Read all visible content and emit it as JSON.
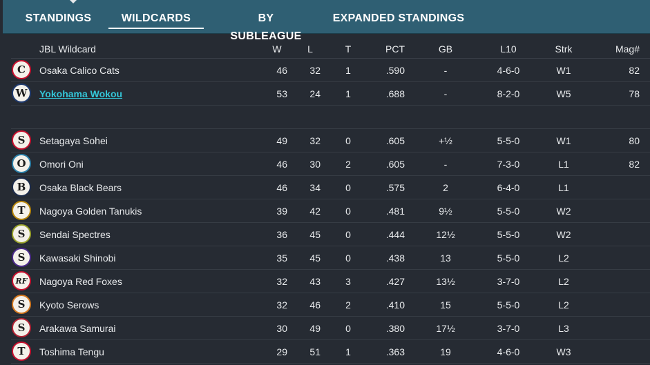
{
  "tabs": [
    {
      "label": "STANDINGS",
      "active": false
    },
    {
      "label": "WILDCARDS",
      "active": true
    },
    {
      "label": "BY SUBLEAGUE",
      "active": false
    },
    {
      "label": "EXPANDED STANDINGS",
      "active": false
    }
  ],
  "table": {
    "headers": {
      "team": "JBL  Wildcard",
      "w": "W",
      "l": "L",
      "t": "T",
      "pct": "PCT",
      "gb": "GB",
      "l10": "L10",
      "strk": "Strk",
      "mag": "Mag#"
    },
    "leaders": [
      {
        "team": "Osaka Calico Cats",
        "logo": "C",
        "ring": "#c8102e",
        "w": "46",
        "l": "32",
        "t": "1",
        "pct": ".590",
        "gb": "-",
        "l10": "4-6-0",
        "strk": "W1",
        "mag": "82"
      },
      {
        "team": "Yokohama Wokou",
        "logo": "W",
        "ring": "#1f3a6e",
        "w": "53",
        "l": "24",
        "t": "1",
        "pct": ".688",
        "gb": "-",
        "l10": "8-2-0",
        "strk": "W5",
        "mag": "78",
        "highlight": true
      }
    ],
    "rows": [
      {
        "team": "Setagaya Sohei",
        "logo": "S",
        "ring": "#c8102e",
        "w": "49",
        "l": "32",
        "t": "0",
        "pct": ".605",
        "gb": "+½",
        "l10": "5-5-0",
        "strk": "W1",
        "mag": "80"
      },
      {
        "team": "Omori Oni",
        "logo": "O",
        "ring": "#2a7fa8",
        "w": "46",
        "l": "30",
        "t": "2",
        "pct": ".605",
        "gb": "-",
        "l10": "7-3-0",
        "strk": "L1",
        "mag": "82"
      },
      {
        "team": "Osaka Black Bears",
        "logo": "B",
        "ring": "#1c2b4a",
        "w": "46",
        "l": "34",
        "t": "0",
        "pct": ".575",
        "gb": "2",
        "l10": "6-4-0",
        "strk": "L1",
        "mag": ""
      },
      {
        "team": "Nagoya Golden Tanukis",
        "logo": "T",
        "ring": "#b8860b",
        "w": "39",
        "l": "42",
        "t": "0",
        "pct": ".481",
        "gb": "9½",
        "l10": "5-5-0",
        "strk": "W2",
        "mag": ""
      },
      {
        "team": "Sendai Spectres",
        "logo": "S",
        "ring": "#9aa32a",
        "w": "36",
        "l": "45",
        "t": "0",
        "pct": ".444",
        "gb": "12½",
        "l10": "5-5-0",
        "strk": "W2",
        "mag": ""
      },
      {
        "team": "Kawasaki Shinobi",
        "logo": "S",
        "ring": "#4b2a8a",
        "w": "35",
        "l": "45",
        "t": "0",
        "pct": ".438",
        "gb": "13",
        "l10": "5-5-0",
        "strk": "L2",
        "mag": ""
      },
      {
        "team": "Nagoya Red Foxes",
        "logo": "RF",
        "ring": "#c8102e",
        "w": "32",
        "l": "43",
        "t": "3",
        "pct": ".427",
        "gb": "13½",
        "l10": "3-7-0",
        "strk": "L2",
        "mag": ""
      },
      {
        "team": "Kyoto Serows",
        "logo": "S",
        "ring": "#d4781e",
        "w": "32",
        "l": "46",
        "t": "2",
        "pct": ".410",
        "gb": "15",
        "l10": "5-5-0",
        "strk": "L2",
        "mag": ""
      },
      {
        "team": "Arakawa Samurai",
        "logo": "S",
        "ring": "#b22234",
        "w": "30",
        "l": "49",
        "t": "0",
        "pct": ".380",
        "gb": "17½",
        "l10": "3-7-0",
        "strk": "L3",
        "mag": ""
      },
      {
        "team": "Toshima Tengu",
        "logo": "T",
        "ring": "#c8102e",
        "w": "29",
        "l": "51",
        "t": "1",
        "pct": ".363",
        "gb": "19",
        "l10": "4-6-0",
        "strk": "W3",
        "mag": ""
      }
    ]
  }
}
